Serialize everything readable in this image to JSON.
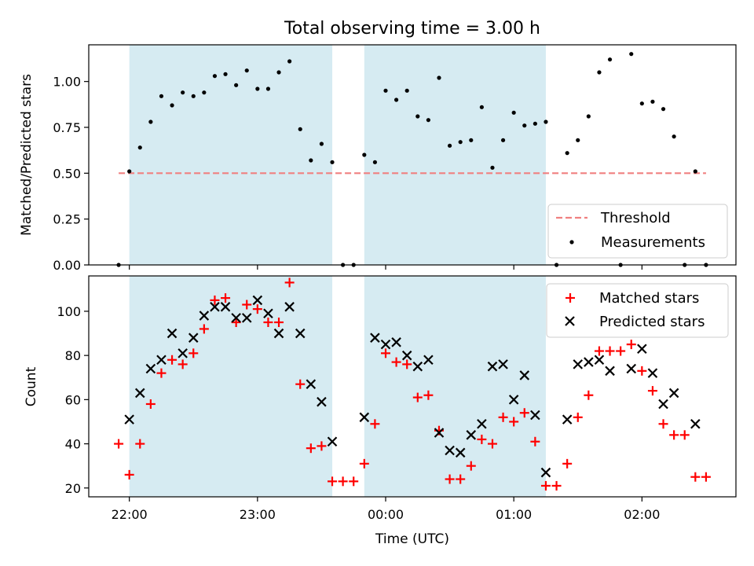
{
  "figure_title": "Total observing time = 3.00 h",
  "xlabel": "Time (UTC)",
  "x_ticks": [
    {
      "t": 0,
      "label": "22:00"
    },
    {
      "t": 60,
      "label": "23:00"
    },
    {
      "t": 120,
      "label": "00:00"
    },
    {
      "t": 180,
      "label": "01:00"
    },
    {
      "t": 240,
      "label": "02:00"
    }
  ],
  "colors": {
    "shade": "#add8e6",
    "threshold": "#f08080",
    "measurements": "#000000",
    "matched": "#ff0000",
    "predicted": "#000000"
  },
  "chart_data": [
    {
      "type": "scatter",
      "title": "Total observing time = 3.00 h",
      "xlabel": "",
      "ylabel": "Matched/Predicted stars",
      "xlim": [
        "21:41",
        "02:44"
      ],
      "ylim": [
        0,
        1.2
      ],
      "yticks": [
        {
          "v": 0,
          "label": "0.00"
        },
        {
          "v": 0.25,
          "label": "0.25"
        },
        {
          "v": 0.5,
          "label": "0.50"
        },
        {
          "v": 0.75,
          "label": "0.75"
        },
        {
          "v": 1.0,
          "label": "1.00"
        }
      ],
      "shaded_intervals": [
        [
          "22:00",
          "23:35"
        ],
        [
          "23:50",
          "01:15"
        ]
      ],
      "threshold": {
        "name": "Threshold",
        "value": 0.5,
        "x_start": "21:55",
        "x_end": "02:30"
      },
      "legend": {
        "position": "bottom-right",
        "entries": [
          "Threshold",
          "Measurements"
        ]
      },
      "series": [
        {
          "name": "Measurements",
          "marker": "dot",
          "points": [
            [
              -5,
              0.0
            ],
            [
              0,
              0.51
            ],
            [
              5,
              0.64
            ],
            [
              10,
              0.78
            ],
            [
              15,
              0.92
            ],
            [
              20,
              0.87
            ],
            [
              25,
              0.94
            ],
            [
              30,
              0.92
            ],
            [
              35,
              0.94
            ],
            [
              40,
              1.03
            ],
            [
              45,
              1.04
            ],
            [
              50,
              0.98
            ],
            [
              55,
              1.06
            ],
            [
              60,
              0.96
            ],
            [
              65,
              0.96
            ],
            [
              70,
              1.05
            ],
            [
              75,
              1.11
            ],
            [
              80,
              0.74
            ],
            [
              85,
              0.57
            ],
            [
              90,
              0.66
            ],
            [
              95,
              0.56
            ],
            [
              100,
              0.0
            ],
            [
              105,
              0.0
            ],
            [
              110,
              0.6
            ],
            [
              115,
              0.56
            ],
            [
              120,
              0.95
            ],
            [
              125,
              0.9
            ],
            [
              130,
              0.95
            ],
            [
              135,
              0.81
            ],
            [
              140,
              0.79
            ],
            [
              145,
              1.02
            ],
            [
              150,
              0.65
            ],
            [
              155,
              0.67
            ],
            [
              160,
              0.68
            ],
            [
              165,
              0.86
            ],
            [
              170,
              0.53
            ],
            [
              175,
              0.68
            ],
            [
              180,
              0.83
            ],
            [
              185,
              0.76
            ],
            [
              190,
              0.77
            ],
            [
              195,
              0.78
            ],
            [
              200,
              0.0
            ],
            [
              205,
              0.61
            ],
            [
              210,
              0.68
            ],
            [
              215,
              0.81
            ],
            [
              220,
              1.05
            ],
            [
              225,
              1.12
            ],
            [
              230,
              0.0
            ],
            [
              235,
              1.15
            ],
            [
              240,
              0.88
            ],
            [
              245,
              0.89
            ],
            [
              250,
              0.85
            ],
            [
              255,
              0.7
            ],
            [
              260,
              0.0
            ],
            [
              265,
              0.51
            ],
            [
              270,
              0.0
            ]
          ]
        }
      ]
    },
    {
      "type": "scatter",
      "title": "",
      "xlabel": "Time (UTC)",
      "ylabel": "Count",
      "xlim": [
        "21:41",
        "02:44"
      ],
      "ylim": [
        16,
        116
      ],
      "yticks": [
        {
          "v": 20,
          "label": "20"
        },
        {
          "v": 40,
          "label": "40"
        },
        {
          "v": 60,
          "label": "60"
        },
        {
          "v": 80,
          "label": "80"
        },
        {
          "v": 100,
          "label": "100"
        }
      ],
      "shaded_intervals": [
        [
          "22:00",
          "23:35"
        ],
        [
          "23:50",
          "01:15"
        ]
      ],
      "legend": {
        "position": "top-right",
        "entries": [
          "Matched stars",
          "Predicted stars"
        ]
      },
      "series": [
        {
          "name": "Matched stars",
          "marker": "plus",
          "points": [
            [
              -5,
              40
            ],
            [
              0,
              26
            ],
            [
              5,
              40
            ],
            [
              10,
              58
            ],
            [
              15,
              72
            ],
            [
              20,
              78
            ],
            [
              25,
              76
            ],
            [
              30,
              81
            ],
            [
              35,
              92
            ],
            [
              40,
              105
            ],
            [
              45,
              106
            ],
            [
              50,
              95
            ],
            [
              55,
              103
            ],
            [
              60,
              101
            ],
            [
              65,
              95
            ],
            [
              70,
              95
            ],
            [
              75,
              113
            ],
            [
              80,
              67
            ],
            [
              85,
              38
            ],
            [
              90,
              39
            ],
            [
              95,
              23
            ],
            [
              100,
              23
            ],
            [
              105,
              23
            ],
            [
              110,
              31
            ],
            [
              115,
              49
            ],
            [
              120,
              81
            ],
            [
              125,
              77
            ],
            [
              130,
              76
            ],
            [
              135,
              61
            ],
            [
              140,
              62
            ],
            [
              145,
              46
            ],
            [
              150,
              24
            ],
            [
              155,
              24
            ],
            [
              160,
              30
            ],
            [
              165,
              42
            ],
            [
              170,
              40
            ],
            [
              175,
              52
            ],
            [
              180,
              50
            ],
            [
              185,
              54
            ],
            [
              190,
              41
            ],
            [
              195,
              21
            ],
            [
              200,
              21
            ],
            [
              205,
              31
            ],
            [
              210,
              52
            ],
            [
              215,
              62
            ],
            [
              220,
              82
            ],
            [
              225,
              82
            ],
            [
              230,
              82
            ],
            [
              235,
              85
            ],
            [
              240,
              73
            ],
            [
              245,
              64
            ],
            [
              250,
              49
            ],
            [
              255,
              44
            ],
            [
              260,
              44
            ],
            [
              265,
              25
            ],
            [
              270,
              25
            ]
          ]
        },
        {
          "name": "Predicted stars",
          "marker": "x",
          "points": [
            [
              0,
              51
            ],
            [
              5,
              63
            ],
            [
              10,
              74
            ],
            [
              15,
              78
            ],
            [
              20,
              90
            ],
            [
              25,
              81
            ],
            [
              30,
              88
            ],
            [
              35,
              98
            ],
            [
              40,
              102
            ],
            [
              45,
              102
            ],
            [
              50,
              97
            ],
            [
              55,
              97
            ],
            [
              60,
              105
            ],
            [
              65,
              99
            ],
            [
              70,
              90
            ],
            [
              75,
              102
            ],
            [
              80,
              90
            ],
            [
              85,
              67
            ],
            [
              90,
              59
            ],
            [
              95,
              41
            ],
            [
              110,
              52
            ],
            [
              115,
              88
            ],
            [
              120,
              85
            ],
            [
              125,
              86
            ],
            [
              130,
              80
            ],
            [
              135,
              75
            ],
            [
              140,
              78
            ],
            [
              145,
              45
            ],
            [
              150,
              37
            ],
            [
              155,
              36
            ],
            [
              160,
              44
            ],
            [
              165,
              49
            ],
            [
              170,
              75
            ],
            [
              175,
              76
            ],
            [
              180,
              60
            ],
            [
              185,
              71
            ],
            [
              190,
              53
            ],
            [
              195,
              27
            ],
            [
              205,
              51
            ],
            [
              210,
              76
            ],
            [
              215,
              77
            ],
            [
              220,
              78
            ],
            [
              225,
              73
            ],
            [
              235,
              74
            ],
            [
              240,
              83
            ],
            [
              245,
              72
            ],
            [
              250,
              58
            ],
            [
              255,
              63
            ],
            [
              265,
              49
            ]
          ]
        }
      ]
    }
  ]
}
